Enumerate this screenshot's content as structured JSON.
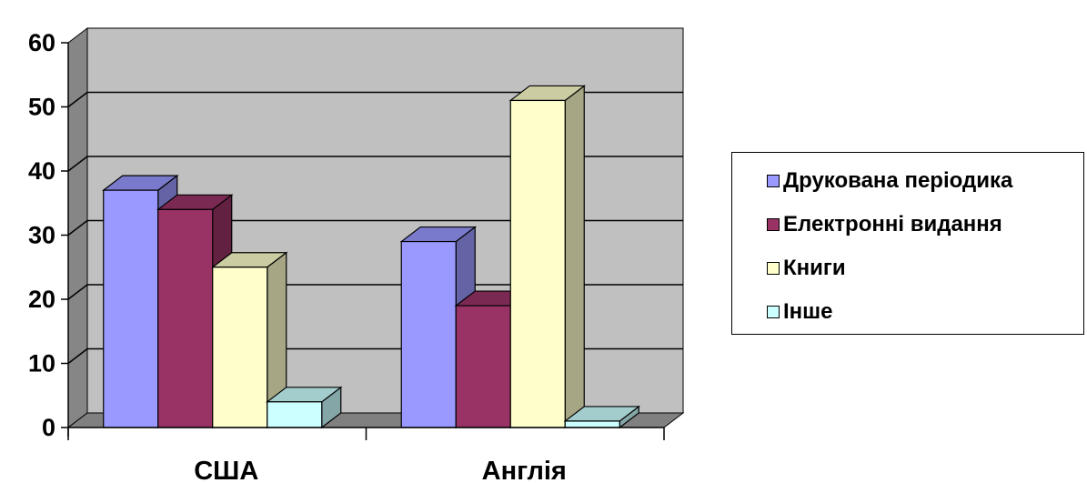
{
  "chart_data": {
    "type": "bar",
    "categories": [
      "США",
      "Англія"
    ],
    "series": [
      {
        "name": "Друкована періодика",
        "values": [
          37,
          29
        ],
        "color": "#9999ff"
      },
      {
        "name": "Електронні видання",
        "values": [
          34,
          19
        ],
        "color": "#993366"
      },
      {
        "name": "Книги",
        "values": [
          25,
          51
        ],
        "color": "#ffffcc"
      },
      {
        "name": "Інше",
        "values": [
          4,
          1
        ],
        "color": "#ccffff"
      }
    ],
    "ylim": [
      0,
      60
    ],
    "yticks": [
      "0",
      "10",
      "20",
      "30",
      "40",
      "50",
      "60"
    ],
    "grid": true,
    "legend_position": "right",
    "style": "3d",
    "wall_color": "#c0c0c0",
    "floor_color": "#808080"
  }
}
